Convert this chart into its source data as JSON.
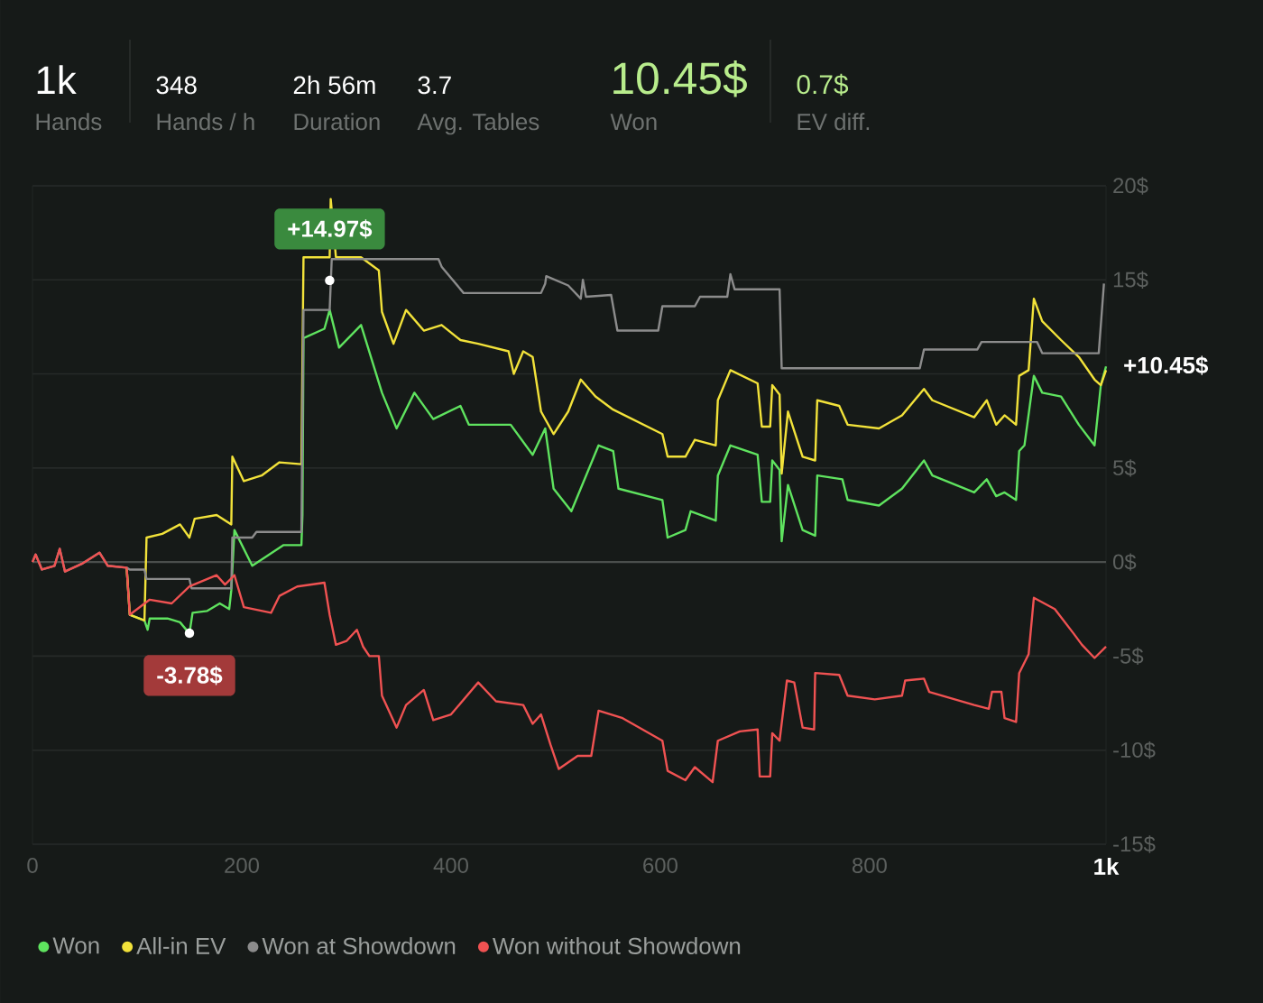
{
  "chart_data": {
    "type": "line",
    "annotations": [
      "1k",
      "Hands",
      "348",
      "Hands / h",
      "2h 56m",
      "Duration",
      "3.7",
      "Avg. Tables",
      "10.45$",
      "Won",
      "0.7$",
      "EV diff.",
      {
        "text": "+14.97$",
        "x": 284,
        "y": 14.97
      },
      {
        "text": "-3.78$",
        "x": 150,
        "y": -3.78
      },
      {
        "text": "+10.45$",
        "x": 1026,
        "y": 10.45
      }
    ],
    "xlim": [
      0,
      1026
    ],
    "ylim": [
      -15,
      20
    ],
    "xticks": [
      0,
      200,
      400,
      600,
      800,
      {
        "value": 1026,
        "label": "1k"
      }
    ],
    "yticks": [
      {
        "value": -15,
        "label": "-15$"
      },
      {
        "value": -10,
        "label": "-10$"
      },
      {
        "value": -5,
        "label": "-5$"
      },
      {
        "value": 0,
        "label": "0$"
      },
      {
        "value": 5,
        "label": "5$"
      },
      {
        "value": 10,
        "label": null
      },
      {
        "value": 15,
        "label": "15$"
      },
      {
        "value": 20,
        "label": "20$"
      }
    ],
    "grid": "y",
    "legend": "bottom",
    "ref_lines": [
      {
        "axis": "y",
        "value": 0,
        "color": "#4a4e4c"
      }
    ],
    "series": [
      {
        "name": "Won",
        "color": "#5fe35f",
        "x": [
          90,
          93,
          107,
          110,
          112,
          129,
          141,
          150,
          153,
          167,
          179,
          188,
          190,
          193,
          210,
          240,
          257,
          258,
          259,
          279,
          284,
          293,
          314,
          334,
          348,
          365,
          383,
          409,
          417,
          457,
          478,
          490,
          498,
          515,
          541,
          555,
          560,
          602,
          607,
          624,
          629,
          653,
          655,
          667,
          693,
          697,
          705,
          707,
          714,
          716,
          722,
          736,
          748,
          750,
          774,
          779,
          809,
          831,
          852,
          860,
          900,
          912,
          921,
          929,
          940,
          943,
          948,
          957,
          965,
          983,
          1000,
          1015,
          1021,
          1026
        ],
        "values": [
          -0.3,
          -2.8,
          -3.1,
          -3.6,
          -3.0,
          -3.0,
          -3.2,
          -3.8,
          -2.7,
          -2.6,
          -2.2,
          -2.5,
          -1.5,
          1.7,
          -0.2,
          0.9,
          0.9,
          2.5,
          11.9,
          12.4,
          13.4,
          11.4,
          12.6,
          9.0,
          7.1,
          9.0,
          7.6,
          8.3,
          7.3,
          7.3,
          5.7,
          7.1,
          3.9,
          2.7,
          6.2,
          5.9,
          3.9,
          3.3,
          1.3,
          1.7,
          2.7,
          2.2,
          4.6,
          6.2,
          5.7,
          3.2,
          3.2,
          5.4,
          4.9,
          1.1,
          4.1,
          1.7,
          1.4,
          4.6,
          4.4,
          3.3,
          3.0,
          3.9,
          5.4,
          4.6,
          3.7,
          4.4,
          3.5,
          3.7,
          3.3,
          5.9,
          6.2,
          9.9,
          9.0,
          8.8,
          7.3,
          6.2,
          9.4,
          10.4
        ]
      },
      {
        "name": "All-in EV",
        "color": "#f2e23a",
        "x": [
          90,
          93,
          107,
          109,
          124,
          141,
          150,
          155,
          176,
          190,
          191,
          202,
          219,
          236,
          257,
          259,
          284,
          285,
          290,
          314,
          331,
          334,
          345,
          357,
          374,
          391,
          409,
          426,
          455,
          460,
          469,
          478,
          486,
          498,
          512,
          524,
          538,
          555,
          602,
          607,
          624,
          633,
          653,
          655,
          667,
          693,
          697,
          705,
          707,
          714,
          716,
          722,
          736,
          748,
          750,
          771,
          779,
          809,
          831,
          852,
          860,
          900,
          912,
          921,
          929,
          940,
          943,
          952,
          957,
          965,
          983,
          1000,
          1015,
          1021,
          1026
        ],
        "values": [
          -0.3,
          -2.8,
          -3.1,
          1.3,
          1.5,
          2.0,
          1.3,
          2.3,
          2.5,
          2.0,
          5.6,
          4.3,
          4.6,
          5.3,
          5.2,
          16.2,
          16.2,
          19.3,
          16.2,
          16.2,
          15.5,
          13.3,
          11.6,
          13.4,
          12.3,
          12.6,
          11.8,
          11.6,
          11.2,
          10.0,
          11.2,
          10.9,
          8.0,
          6.8,
          8.0,
          9.7,
          8.8,
          8.1,
          6.8,
          5.6,
          5.6,
          6.5,
          6.2,
          8.6,
          10.2,
          9.5,
          7.2,
          7.2,
          9.4,
          8.9,
          4.7,
          8.0,
          5.6,
          5.4,
          8.6,
          8.3,
          7.3,
          7.1,
          7.8,
          9.2,
          8.6,
          7.7,
          8.6,
          7.3,
          7.8,
          7.3,
          9.9,
          10.2,
          14.0,
          12.8,
          11.8,
          10.9,
          9.7,
          9.4,
          10.2
        ]
      },
      {
        "name": "Won at Showdown",
        "color": "#8c8c8c",
        "x": [
          0,
          3,
          9,
          21,
          26,
          31,
          47,
          64,
          72,
          90,
          93,
          107,
          109,
          150,
          152,
          190,
          191,
          210,
          214,
          257,
          259,
          284,
          286,
          388,
          391,
          412,
          486,
          490,
          491,
          512,
          524,
          526,
          529,
          553,
          559,
          598,
          602,
          633,
          638,
          664,
          667,
          671,
          714,
          716,
          848,
          852,
          903,
          907,
          960,
          965,
          1019,
          1024
        ],
        "values": [
          0,
          0.4,
          -0.4,
          -0.2,
          0.7,
          -0.5,
          -0.1,
          0.5,
          -0.2,
          -0.3,
          -0.4,
          -0.4,
          -0.9,
          -0.9,
          -1.4,
          -1.4,
          1.3,
          1.3,
          1.6,
          1.6,
          13.4,
          13.4,
          16.1,
          16.1,
          15.7,
          14.3,
          14.3,
          14.8,
          15.2,
          14.7,
          14.0,
          15.0,
          14.1,
          14.2,
          12.3,
          12.3,
          13.6,
          13.6,
          14.1,
          14.1,
          15.3,
          14.5,
          14.5,
          10.3,
          10.3,
          11.3,
          11.3,
          11.7,
          11.7,
          11.1,
          11.1,
          14.8
        ]
      },
      {
        "name": "Won without Showdown",
        "color": "#f05252",
        "x": [
          0,
          3,
          9,
          21,
          26,
          31,
          47,
          64,
          72,
          90,
          93,
          112,
          133,
          150,
          176,
          184,
          193,
          202,
          228,
          236,
          253,
          279,
          284,
          290,
          300,
          310,
          316,
          322,
          331,
          334,
          348,
          357,
          374,
          383,
          400,
          426,
          443,
          469,
          478,
          486,
          495,
          503,
          521,
          534,
          541,
          564,
          602,
          607,
          624,
          633,
          650,
          655,
          676,
          693,
          695,
          705,
          707,
          714,
          721,
          728,
          736,
          747,
          748,
          771,
          779,
          805,
          831,
          834,
          852,
          857,
          900,
          914,
          917,
          926,
          929,
          940,
          943,
          952,
          957,
          977,
          995,
          1003,
          1015,
          1026
        ],
        "values": [
          0,
          0.4,
          -0.4,
          -0.2,
          0.7,
          -0.5,
          -0.1,
          0.5,
          -0.2,
          -0.3,
          -2.8,
          -2.0,
          -2.2,
          -1.3,
          -0.7,
          -1.2,
          -0.7,
          -2.4,
          -2.7,
          -1.8,
          -1.3,
          -1.1,
          -2.8,
          -4.4,
          -4.2,
          -3.6,
          -4.5,
          -5.0,
          -5.0,
          -7.1,
          -8.8,
          -7.6,
          -6.8,
          -8.4,
          -8.1,
          -6.4,
          -7.4,
          -7.6,
          -8.6,
          -8.1,
          -9.7,
          -11.0,
          -10.3,
          -10.3,
          -7.9,
          -8.3,
          -9.5,
          -11.1,
          -11.6,
          -10.9,
          -11.7,
          -9.5,
          -9.0,
          -8.9,
          -11.4,
          -11.4,
          -9.1,
          -9.5,
          -6.3,
          -6.4,
          -8.8,
          -8.9,
          -5.9,
          -6.0,
          -7.1,
          -7.3,
          -7.1,
          -6.3,
          -6.2,
          -6.9,
          -7.6,
          -7.8,
          -6.9,
          -6.9,
          -8.3,
          -8.5,
          -5.9,
          -4.9,
          -1.9,
          -2.5,
          -3.8,
          -4.4,
          -5.1,
          -4.5
        ]
      }
    ]
  }
}
